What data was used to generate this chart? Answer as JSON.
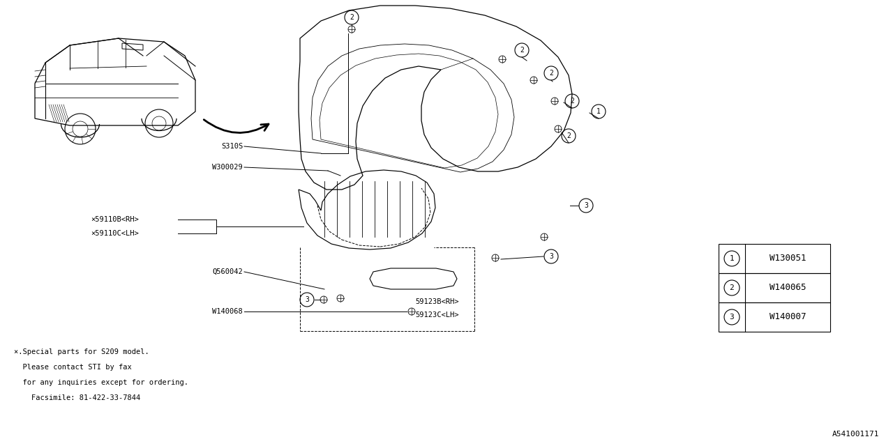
{
  "bg_color": "#ffffff",
  "text_color": "#000000",
  "diagram_id": "A541001171",
  "legend_items": [
    {
      "num": "1",
      "code": "W130051"
    },
    {
      "num": "2",
      "code": "W140065"
    },
    {
      "num": "3",
      "code": "W140007"
    }
  ],
  "footnote_lines": [
    "×.Special parts for S209 model.",
    "  Please contact STI by fax",
    "  for any inquiries except for ordering.",
    "    Facsimile: 81-422-33-7844"
  ],
  "figsize": [
    12.8,
    6.4
  ],
  "dpi": 100
}
